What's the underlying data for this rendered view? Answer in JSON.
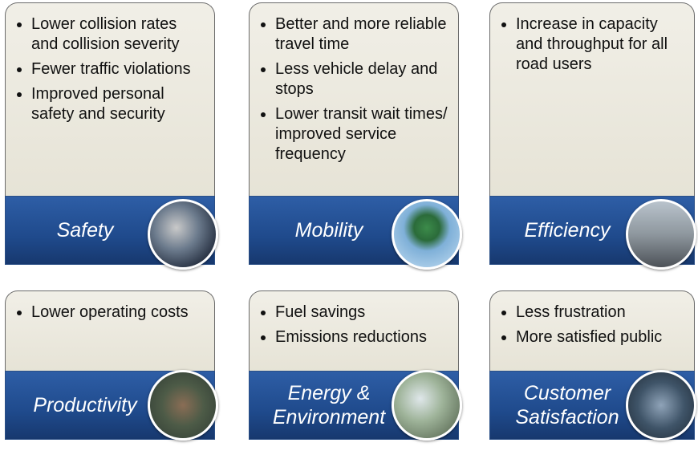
{
  "cards": [
    {
      "bullets": [
        "Lower collision rates and collision severity",
        "Fewer traffic violations",
        "Improved personal safety and security"
      ],
      "label": "Safety"
    },
    {
      "bullets": [
        "Better and more reliable travel time",
        "Less vehicle delay and stops",
        "Lower transit wait times/ improved service frequency"
      ],
      "label": "Mobility"
    },
    {
      "bullets": [
        "Increase in capacity and throughput for all road users"
      ],
      "label": "Efficiency"
    },
    {
      "bullets": [
        "Lower operating costs"
      ],
      "label": "Productivity"
    },
    {
      "bullets": [
        "Fuel savings",
        "Emissions reductions"
      ],
      "label": "Energy & Environment"
    },
    {
      "bullets": [
        "Less frustration",
        "More satisfied public"
      ],
      "label": "Customer Satisfaction"
    }
  ]
}
